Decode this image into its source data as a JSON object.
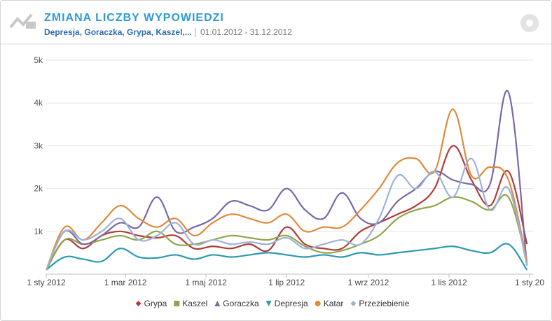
{
  "header": {
    "title": "ZMIANA LICZBY WYPOWIEDZI",
    "series_list": "Depresja, Goraczka, Grypa, Kaszel,...",
    "date_range": "01.01.2012 - 31.12.2012"
  },
  "chart_data": {
    "type": "line",
    "x": [
      0,
      14,
      28,
      42,
      56,
      70,
      84,
      98,
      112,
      126,
      140,
      154,
      168,
      182,
      196,
      210,
      224,
      238,
      252,
      266,
      280,
      294,
      308,
      322,
      336,
      350,
      364
    ],
    "xlim": [
      0,
      366
    ],
    "xticks": [
      {
        "value": 0,
        "label": "1 sty 2012"
      },
      {
        "value": 60,
        "label": "1 mar 2012"
      },
      {
        "value": 121,
        "label": "1 maj 2012"
      },
      {
        "value": 182,
        "label": "1 lip 2012"
      },
      {
        "value": 244,
        "label": "1 wrz 2012"
      },
      {
        "value": 305,
        "label": "1 lis 2012"
      },
      {
        "value": 366,
        "label": "1 sty 20"
      }
    ],
    "ylim": [
      0,
      5000
    ],
    "yticks": [
      {
        "value": 1000,
        "label": "1k"
      },
      {
        "value": 2000,
        "label": "2k"
      },
      {
        "value": 3000,
        "label": "3k"
      },
      {
        "value": 4000,
        "label": "4k"
      },
      {
        "value": 5000,
        "label": "5k"
      }
    ],
    "grid": true,
    "series": [
      {
        "name": "Grypa",
        "color": "#b23b3b",
        "marker": "diamond",
        "values": [
          100,
          800,
          600,
          900,
          1000,
          900,
          850,
          900,
          600,
          650,
          600,
          700,
          550,
          1100,
          700,
          600,
          600,
          1000,
          1200,
          1400,
          1600,
          2000,
          3000,
          2200,
          1600,
          2400,
          700
        ]
      },
      {
        "name": "Kaszel",
        "color": "#8ea74a",
        "marker": "square",
        "values": [
          100,
          800,
          700,
          800,
          900,
          800,
          1000,
          700,
          700,
          800,
          900,
          850,
          800,
          900,
          650,
          500,
          550,
          700,
          900,
          1300,
          1500,
          1600,
          1800,
          1700,
          1500,
          1800,
          300
        ]
      },
      {
        "name": "Goraczka",
        "color": "#7b68a4",
        "marker": "triangle",
        "values": [
          100,
          1000,
          700,
          900,
          1200,
          1100,
          1800,
          1000,
          1100,
          1300,
          1700,
          1600,
          1500,
          2000,
          1500,
          1300,
          1900,
          1300,
          1200,
          1700,
          2000,
          2400,
          2200,
          2100,
          2100,
          4250,
          200
        ]
      },
      {
        "name": "Depresja",
        "color": "#2a9ab0",
        "marker": "triangle-down",
        "values": [
          100,
          400,
          350,
          300,
          600,
          400,
          380,
          450,
          350,
          450,
          400,
          450,
          500,
          450,
          400,
          450,
          400,
          500,
          450,
          500,
          550,
          600,
          650,
          550,
          500,
          700,
          100
        ]
      },
      {
        "name": "Katar",
        "color": "#e08a3a",
        "marker": "circle",
        "values": [
          100,
          1100,
          800,
          1200,
          1600,
          1300,
          1100,
          1300,
          900,
          1200,
          1400,
          1300,
          1200,
          1400,
          1000,
          1100,
          1100,
          1500,
          2000,
          2600,
          2700,
          2400,
          3850,
          2300,
          2500,
          2200,
          300
        ]
      },
      {
        "name": "Przeziebienie",
        "color": "#9db2d8",
        "marker": "diamond",
        "values": [
          100,
          1000,
          800,
          1000,
          1300,
          800,
          900,
          1200,
          700,
          800,
          700,
          750,
          700,
          850,
          600,
          700,
          800,
          700,
          1300,
          2300,
          2000,
          2400,
          1800,
          2700,
          1500,
          2000,
          200
        ]
      }
    ]
  }
}
